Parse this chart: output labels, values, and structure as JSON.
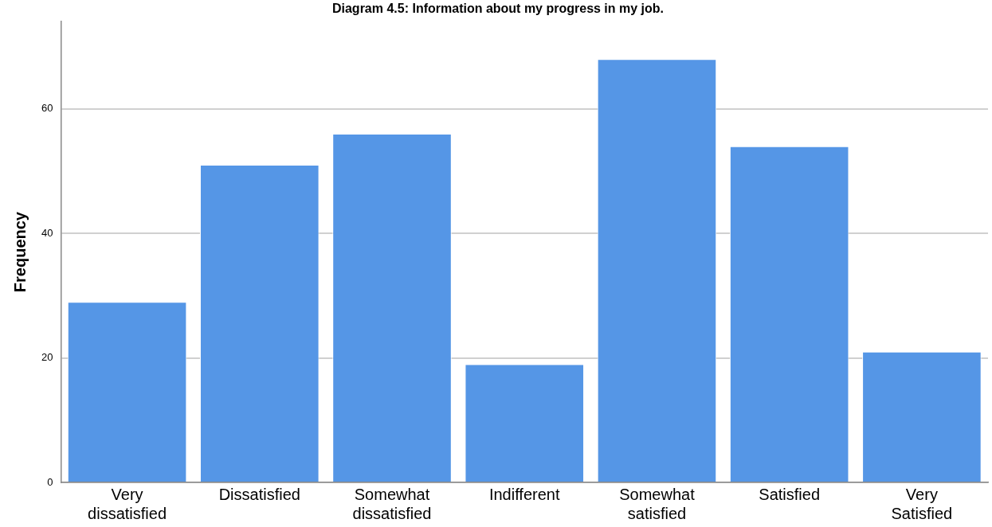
{
  "chart_data": {
    "type": "bar",
    "title": "Diagram 4.5: Information about my progress in my job.",
    "ylabel": "Frequency",
    "categories": [
      "Very dissatisfied",
      "Dissatisfied",
      "Somewhat dissatisfied",
      "Indifferent",
      "Somewhat satisfied",
      "Satisfied",
      "Very Satisfied"
    ],
    "values": [
      29,
      51,
      56,
      19,
      68,
      54,
      21
    ],
    "color": "#5596e6",
    "ylim": [
      0,
      74
    ],
    "yticks": [
      0,
      20,
      40,
      60
    ],
    "grid": "y",
    "legend": false
  }
}
